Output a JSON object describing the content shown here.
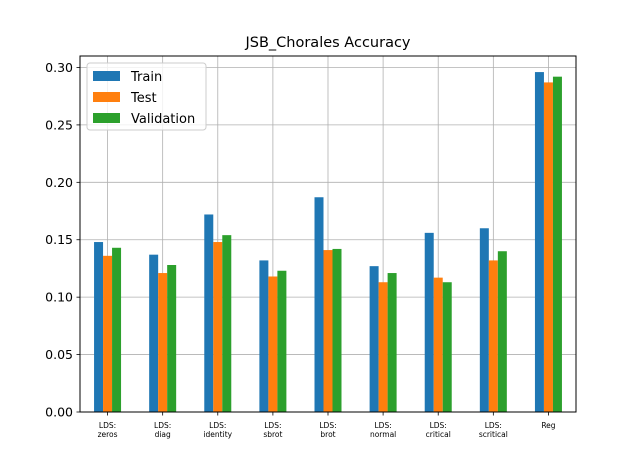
{
  "chart_data": {
    "type": "bar",
    "title": "JSB_Chorales Accuracy",
    "xlabel": "",
    "ylabel": "",
    "ylim": [
      0,
      0.31
    ],
    "yticks": [
      "0.00",
      "0.05",
      "0.10",
      "0.15",
      "0.20",
      "0.25",
      "0.30"
    ],
    "grid": true,
    "legend_position": "top-left",
    "categories": [
      [
        "LDS:",
        "zeros"
      ],
      [
        "LDS:",
        "diag"
      ],
      [
        "LDS:",
        "identity"
      ],
      [
        "LDS:",
        "sbrot"
      ],
      [
        "LDS:",
        "brot"
      ],
      [
        "LDS:",
        "normal"
      ],
      [
        "LDS:",
        "critical"
      ],
      [
        "LDS:",
        "scritical"
      ],
      [
        "Reg"
      ]
    ],
    "series": [
      {
        "name": "Train",
        "color": "#1f77b4",
        "values": [
          0.148,
          0.137,
          0.172,
          0.132,
          0.187,
          0.127,
          0.156,
          0.16,
          0.296
        ]
      },
      {
        "name": "Test",
        "color": "#ff7f0e",
        "values": [
          0.136,
          0.121,
          0.148,
          0.118,
          0.141,
          0.113,
          0.117,
          0.132,
          0.287
        ]
      },
      {
        "name": "Validation",
        "color": "#2ca02c",
        "values": [
          0.143,
          0.128,
          0.154,
          0.123,
          0.142,
          0.121,
          0.113,
          0.14,
          0.292
        ]
      }
    ]
  }
}
